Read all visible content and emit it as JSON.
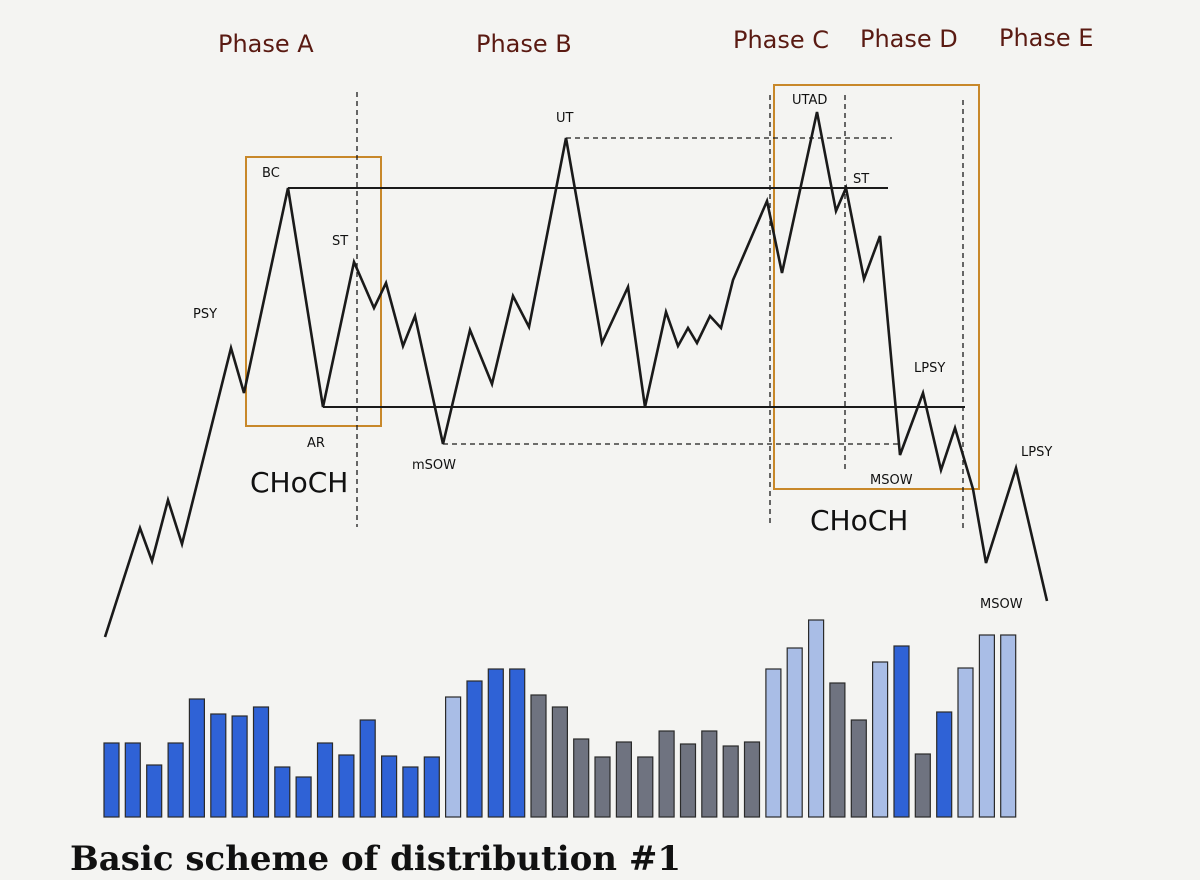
{
  "caption": "Basic scheme of distribution #1",
  "colors": {
    "phase_text": "#5a1a12",
    "box_border": "#c8882a",
    "line": "#1a1a1a",
    "volume_blue": "#2f62d6",
    "volume_grey": "#6f7380",
    "volume_light": "#a9bde6"
  },
  "phases": {
    "a": "Phase A",
    "b": "Phase B",
    "c": "Phase C",
    "d": "Phase D",
    "e": "Phase E"
  },
  "labels": {
    "psy": "PSY",
    "bc": "BC",
    "st_a": "ST",
    "ar": "AR",
    "choch_a": "CHoCH",
    "msow_minor": "mSOW",
    "ut": "UT",
    "utad": "UTAD",
    "st_c": "ST",
    "lpsy_d": "LPSY",
    "msow_d": "MSOW",
    "choch_c": "CHoCH",
    "lpsy_e": "LPSY",
    "msow_e": "MSOW"
  },
  "volume_bars": {
    "values": [
      74,
      74,
      52,
      74,
      118,
      103,
      101,
      110,
      50,
      40,
      74,
      62,
      97,
      61,
      50,
      60,
      120,
      136,
      148,
      148,
      122,
      110,
      78,
      60,
      75,
      60,
      86,
      73,
      86,
      71,
      75,
      148,
      169,
      197,
      134,
      97,
      155,
      171,
      63,
      105,
      149,
      182,
      182
    ],
    "tones": [
      "blue",
      "blue",
      "blue",
      "blue",
      "blue",
      "blue",
      "blue",
      "blue",
      "blue",
      "blue",
      "blue",
      "blue",
      "blue",
      "blue",
      "blue",
      "blue",
      "light",
      "blue",
      "blue",
      "blue",
      "grey",
      "grey",
      "grey",
      "grey",
      "grey",
      "grey",
      "grey",
      "grey",
      "grey",
      "grey",
      "grey",
      "light",
      "light",
      "light",
      "grey",
      "grey",
      "light",
      "blue",
      "grey",
      "blue",
      "light",
      "light",
      "light"
    ]
  }
}
